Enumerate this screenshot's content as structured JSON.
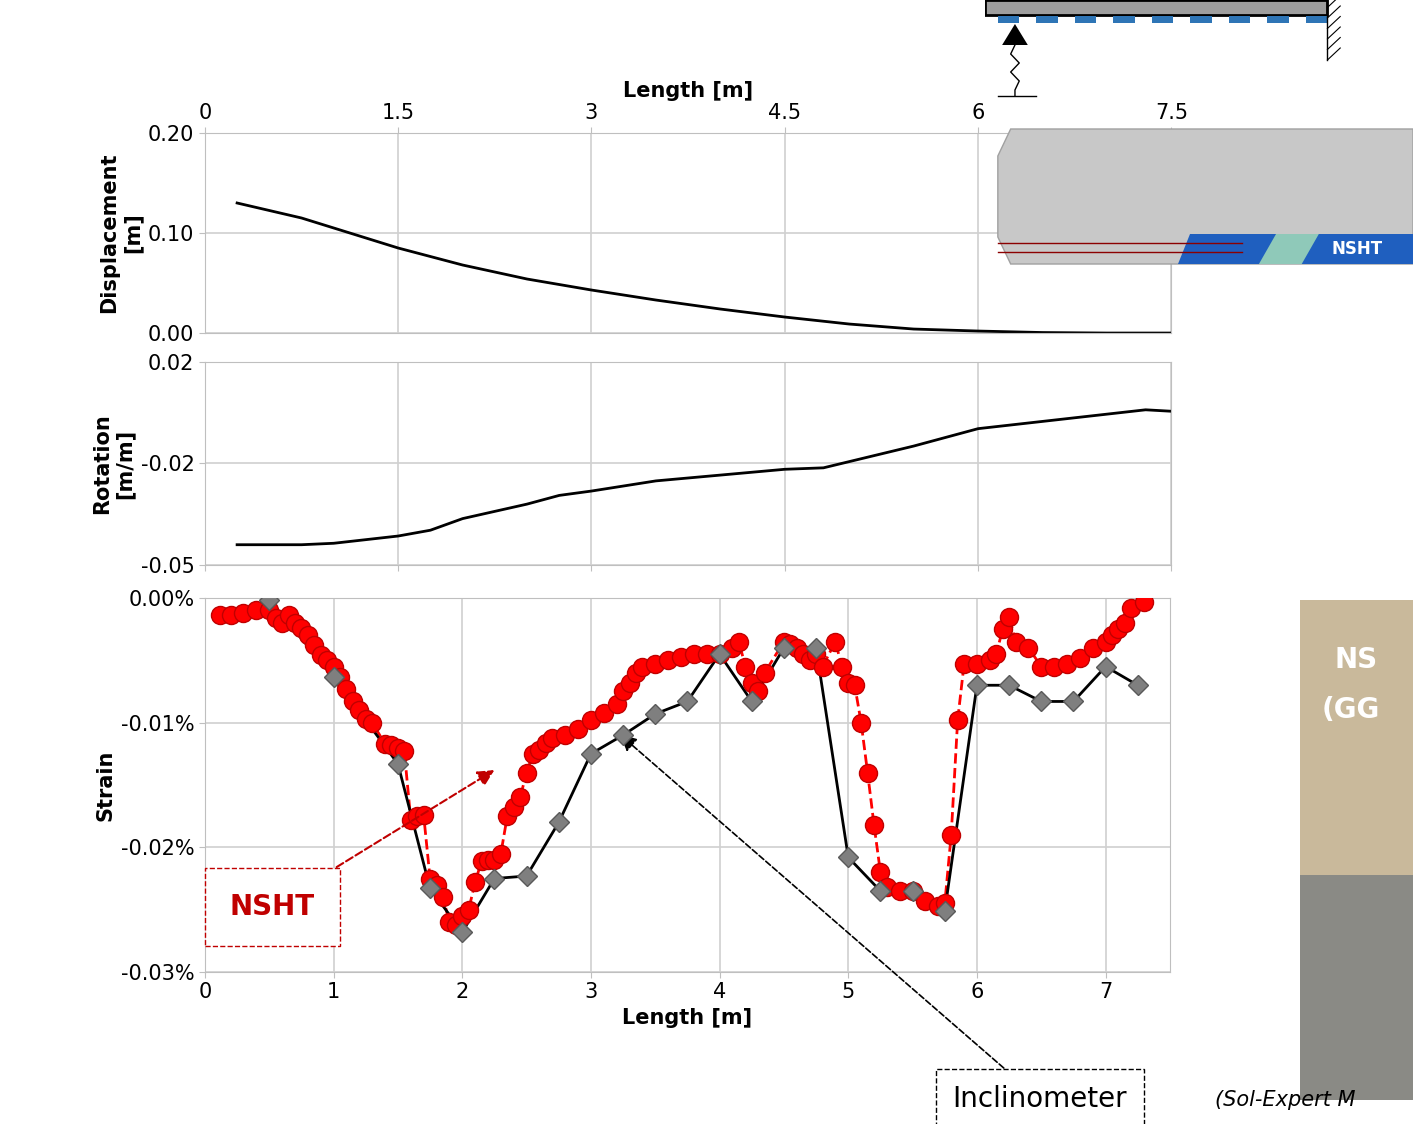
{
  "chart_data": [
    {
      "type": "line",
      "x_label": "Length [m]",
      "y_label": "Displacement\n[m]",
      "xlim": [
        0,
        7.5
      ],
      "xticks": [
        0,
        1.5,
        3,
        4.5,
        6,
        7.5
      ],
      "ylim": [
        0,
        0.2
      ],
      "yticks": [
        {
          "value": 0,
          "label": "0.00"
        },
        {
          "value": 0.1,
          "label": "0.10"
        },
        {
          "value": 0.2,
          "label": "0.20"
        }
      ],
      "grid": true,
      "tick_labels": true,
      "x": [
        0.25,
        0.75,
        1.0,
        1.5,
        2.0,
        2.5,
        3.0,
        3.5,
        4.0,
        4.5,
        5.0,
        5.5,
        6.0,
        6.5,
        7.0,
        7.5
      ],
      "values": [
        0.13,
        0.115,
        0.105,
        0.085,
        0.068,
        0.054,
        0.043,
        0.033,
        0.024,
        0.016,
        0.009,
        0.004,
        0.002,
        0.0005,
        0.0,
        0.0
      ],
      "color": "#000000"
    },
    {
      "type": "line",
      "y_label": "Rotation\n[m/m]",
      "xlim": [
        0,
        7.5
      ],
      "xticks": [
        0,
        1.5,
        3,
        4.5,
        6,
        7.5
      ],
      "ylim": [
        -0.05,
        0.02
      ],
      "yticks": [
        {
          "value": -0.05,
          "label": "-0.05"
        },
        {
          "value": -0.015,
          "label": "-0.02"
        },
        {
          "value": 0.02,
          "label": "0.02"
        }
      ],
      "grid": true,
      "tick_labels": "y",
      "x": [
        0.25,
        0.75,
        1.0,
        1.5,
        1.75,
        2.0,
        2.5,
        2.75,
        3.0,
        3.5,
        4.0,
        4.5,
        4.8,
        5.5,
        6.0,
        6.5,
        7.0,
        7.3,
        7.5
      ],
      "values": [
        -0.043,
        -0.043,
        -0.0425,
        -0.04,
        -0.038,
        -0.034,
        -0.029,
        -0.026,
        -0.0245,
        -0.021,
        -0.019,
        -0.017,
        -0.0165,
        -0.009,
        -0.003,
        -0.0005,
        0.002,
        0.0035,
        0.003
      ],
      "color": "#000000"
    },
    {
      "type": "line",
      "x_label": "Length [m]",
      "y_label": "Strain",
      "xlim": [
        0,
        7.5
      ],
      "xticks": [
        0,
        1,
        2,
        3,
        4,
        5,
        6,
        7
      ],
      "ylim": [
        -0.03,
        0.0
      ],
      "yticks": [
        {
          "value": -0.03,
          "label": "-0.03%"
        },
        {
          "value": -0.02,
          "label": "-0.02%"
        },
        {
          "value": -0.01,
          "label": "-0.01%"
        },
        {
          "value": 0,
          "label": "0.00%"
        }
      ],
      "grid": true,
      "tick_labels": true,
      "series": [
        {
          "name": "NSHT",
          "color": "#ff0000",
          "marker": "circle",
          "line_style": "dashed",
          "x": [
            0.12,
            0.2,
            0.3,
            0.4,
            0.5,
            0.55,
            0.6,
            0.65,
            0.7,
            0.75,
            0.8,
            0.85,
            0.9,
            0.95,
            1.0,
            1.05,
            1.1,
            1.15,
            1.2,
            1.25,
            1.3,
            1.4,
            1.45,
            1.5,
            1.55,
            1.6,
            1.65,
            1.7,
            1.75,
            1.8,
            1.85,
            1.9,
            1.95,
            2.0,
            2.05,
            2.1,
            2.15,
            2.2,
            2.25,
            2.3,
            2.35,
            2.4,
            2.45,
            2.5,
            2.55,
            2.6,
            2.65,
            2.7,
            2.8,
            2.9,
            3.0,
            3.1,
            3.2,
            3.25,
            3.3,
            3.35,
            3.4,
            3.5,
            3.6,
            3.7,
            3.8,
            3.9,
            4.0,
            4.1,
            4.15,
            4.2,
            4.25,
            4.3,
            4.35,
            4.5,
            4.55,
            4.6,
            4.65,
            4.7,
            4.75,
            4.8,
            4.9,
            4.95,
            5.0,
            5.05,
            5.1,
            5.15,
            5.2,
            5.25,
            5.3,
            5.4,
            5.5,
            5.6,
            5.7,
            5.75,
            5.8,
            5.85,
            5.9,
            6.0,
            6.1,
            6.15,
            6.2,
            6.25,
            6.3,
            6.4,
            6.5,
            6.6,
            6.7,
            6.8,
            6.9,
            7.0,
            7.05,
            7.1,
            7.15,
            7.2,
            7.3
          ],
          "values": [
            -0.0014,
            -0.0014,
            -0.0012,
            -0.001,
            -0.001,
            -0.0016,
            -0.002,
            -0.0014,
            -0.002,
            -0.0024,
            -0.003,
            -0.0038,
            -0.0046,
            -0.005,
            -0.0055,
            -0.0063,
            -0.0073,
            -0.0083,
            -0.009,
            -0.0097,
            -0.01,
            -0.0117,
            -0.0118,
            -0.012,
            -0.0123,
            -0.0178,
            -0.0175,
            -0.0174,
            -0.0225,
            -0.023,
            -0.024,
            -0.026,
            -0.0262,
            -0.0255,
            -0.025,
            -0.0228,
            -0.0211,
            -0.021,
            -0.021,
            -0.0205,
            -0.0175,
            -0.0168,
            -0.016,
            -0.014,
            -0.0125,
            -0.0122,
            -0.0116,
            -0.0112,
            -0.011,
            -0.0105,
            -0.0098,
            -0.0092,
            -0.0085,
            -0.0075,
            -0.0068,
            -0.006,
            -0.0055,
            -0.0053,
            -0.005,
            -0.0047,
            -0.0045,
            -0.0045,
            -0.0045,
            -0.004,
            -0.0035,
            -0.0055,
            -0.0068,
            -0.0075,
            -0.006,
            -0.0035,
            -0.0037,
            -0.004,
            -0.0045,
            -0.005,
            -0.0045,
            -0.0055,
            -0.0035,
            -0.0055,
            -0.0068,
            -0.007,
            -0.01,
            -0.014,
            -0.0182,
            -0.022,
            -0.0232,
            -0.0235,
            -0.0235,
            -0.0243,
            -0.0247,
            -0.0245,
            -0.019,
            -0.0098,
            -0.0053,
            -0.0053,
            -0.005,
            -0.0045,
            -0.0025,
            -0.0015,
            -0.0035,
            -0.004,
            -0.0055,
            -0.0055,
            -0.0053,
            -0.0048,
            -0.004,
            -0.0035,
            -0.003,
            -0.0025,
            -0.002,
            -0.0008,
            -0.0003
          ]
        },
        {
          "name": "Inclinometer",
          "color": "#7f7f7f",
          "marker": "diamond",
          "line_style": "solid",
          "x": [
            0.5,
            1.0,
            1.5,
            1.75,
            2.0,
            2.25,
            2.5,
            2.75,
            3.0,
            3.25,
            3.5,
            3.75,
            4.0,
            4.25,
            4.5,
            4.75,
            5.0,
            5.25,
            5.5,
            5.75,
            6.0,
            6.25,
            6.5,
            6.75,
            7.0,
            7.25
          ],
          "values": [
            -0.0002,
            -0.0063,
            -0.0133,
            -0.0233,
            -0.0268,
            -0.0225,
            -0.0223,
            -0.018,
            -0.0125,
            -0.011,
            -0.0093,
            -0.0083,
            -0.0045,
            -0.0083,
            -0.004,
            -0.004,
            -0.0208,
            -0.0235,
            -0.0235,
            -0.0251,
            -0.007,
            -0.007,
            -0.0083,
            -0.0083,
            -0.0055,
            -0.007
          ]
        }
      ]
    }
  ],
  "schematic_label": "NSHT",
  "photo_texts": [
    "NS",
    "(GG"
  ],
  "credit": "(Sol-Expert M"
}
